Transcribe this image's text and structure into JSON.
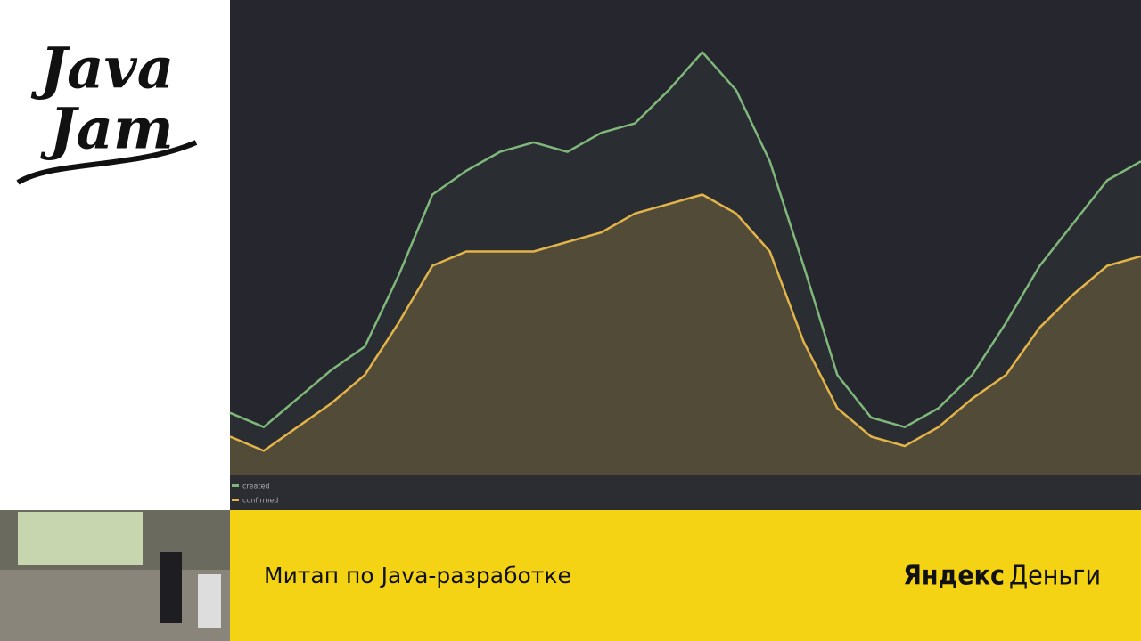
{
  "logo": {
    "line1": "Java",
    "line2": "Jam"
  },
  "banner": {
    "caption": "Митап по Java-разработке",
    "brand_bold": "Яндекс",
    "brand_light": "Деньги"
  },
  "chart_data": {
    "type": "area",
    "ylim": [
      0,
      100
    ],
    "legend": "bottom-left",
    "series": [
      {
        "name": "created",
        "color": "#7fb87a",
        "values": [
          13,
          10,
          16,
          22,
          27,
          42,
          59,
          64,
          68,
          70,
          68,
          72,
          74,
          81,
          89,
          81,
          66,
          44,
          21,
          12,
          10,
          14,
          21,
          32,
          44,
          53,
          62,
          66
        ]
      },
      {
        "name": "confirmed",
        "color": "#e3b44a",
        "values": [
          8,
          5,
          10,
          15,
          21,
          32,
          44,
          47,
          47,
          47,
          49,
          51,
          55,
          57,
          59,
          55,
          47,
          28,
          14,
          8,
          6,
          10,
          16,
          21,
          31,
          38,
          44,
          46
        ]
      }
    ]
  }
}
